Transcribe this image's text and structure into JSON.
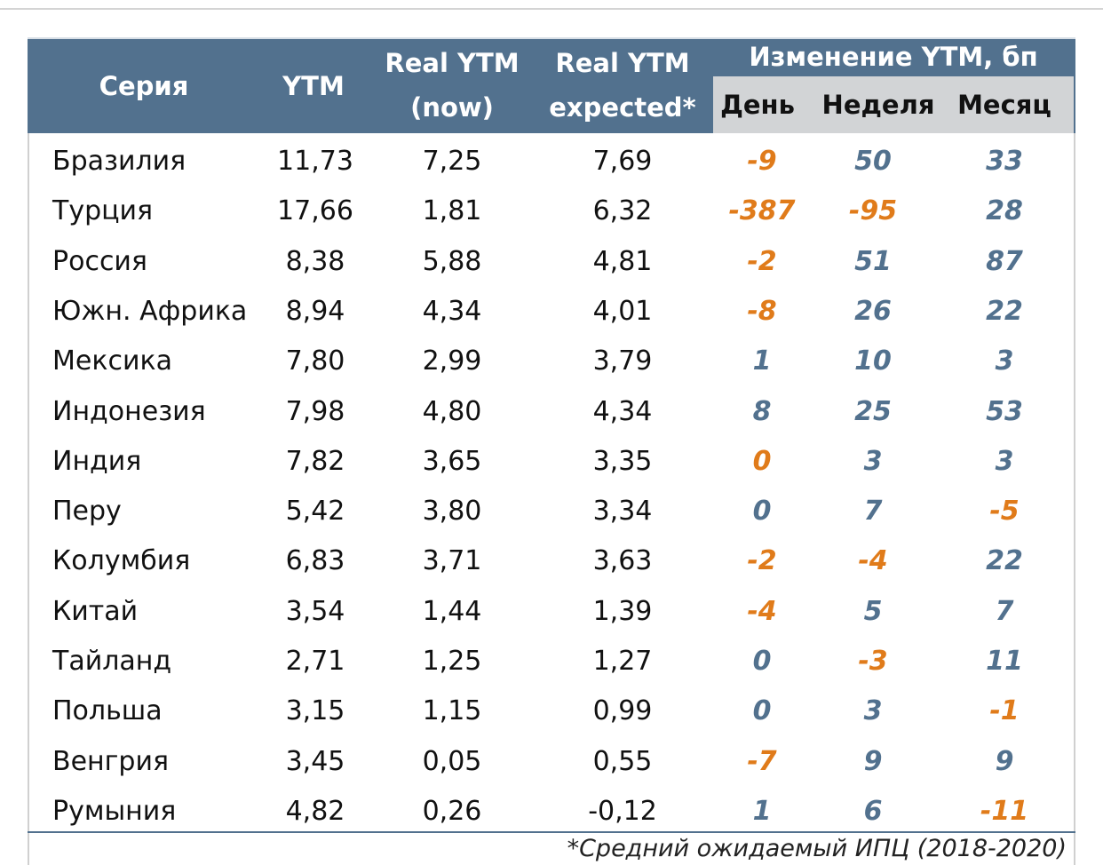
{
  "header": {
    "series": "Серия",
    "ytm": "YTM",
    "real_now_1": "Real YTM",
    "real_now_2": "(now)",
    "real_exp_1": "Real YTM",
    "real_exp_2": "expected*",
    "change_group": "Изменение YTM, бп",
    "day": "День",
    "week": "Неделя",
    "month": "Месяц"
  },
  "rows": [
    {
      "name": "Бразилия",
      "ytm": "11,73",
      "real_now": "7,25",
      "real_exp": "7,69",
      "day": "-9",
      "week": "50",
      "month": "33"
    },
    {
      "name": "Турция",
      "ytm": "17,66",
      "real_now": "1,81",
      "real_exp": "6,32",
      "day": "-387",
      "week": "-95",
      "month": "28"
    },
    {
      "name": "Россия",
      "ytm": "8,38",
      "real_now": "5,88",
      "real_exp": "4,81",
      "day": "-2",
      "week": "51",
      "month": "87"
    },
    {
      "name": "Южн. Африка",
      "ytm": "8,94",
      "real_now": "4,34",
      "real_exp": "4,01",
      "day": "-8",
      "week": "26",
      "month": "22"
    },
    {
      "name": "Мексика",
      "ytm": "7,80",
      "real_now": "2,99",
      "real_exp": "3,79",
      "day": "1",
      "week": "10",
      "month": "3"
    },
    {
      "name": "Индонезия",
      "ytm": "7,98",
      "real_now": "4,80",
      "real_exp": "4,34",
      "day": "8",
      "week": "25",
      "month": "53"
    },
    {
      "name": "Индия",
      "ytm": "7,82",
      "real_now": "3,65",
      "real_exp": "3,35",
      "day": "0",
      "week": "3",
      "month": "3"
    },
    {
      "name": "Перу",
      "ytm": "5,42",
      "real_now": "3,80",
      "real_exp": "3,34",
      "day": "0",
      "week": "7",
      "month": "-5"
    },
    {
      "name": "Колумбия",
      "ytm": "6,83",
      "real_now": "3,71",
      "real_exp": "3,63",
      "day": "-2",
      "week": "-4",
      "month": "22"
    },
    {
      "name": "Китай",
      "ytm": "3,54",
      "real_now": "1,44",
      "real_exp": "1,39",
      "day": "-4",
      "week": "5",
      "month": "7"
    },
    {
      "name": "Тайланд",
      "ytm": "2,71",
      "real_now": "1,25",
      "real_exp": "1,27",
      "day": "0",
      "week": "-3",
      "month": "11"
    },
    {
      "name": "Польша",
      "ytm": "3,15",
      "real_now": "1,15",
      "real_exp": "0,99",
      "day": "0",
      "week": "3",
      "month": "-1"
    },
    {
      "name": "Венгрия",
      "ytm": "3,45",
      "real_now": "0,05",
      "real_exp": "0,55",
      "day": "-7",
      "week": "9",
      "month": "9"
    },
    {
      "name": "Румыния",
      "ytm": "4,82",
      "real_now": "0,26",
      "real_exp": "-0,12",
      "day": "1",
      "week": "6",
      "month": "-11"
    }
  ],
  "footnote": "*Средний ожидаемый ИПЦ (2018-2020)",
  "colors": {
    "header_bg": "#52718e",
    "subheader_bg": "#d2d4d6",
    "negative": "#e07b1a",
    "positive": "#52718e"
  }
}
